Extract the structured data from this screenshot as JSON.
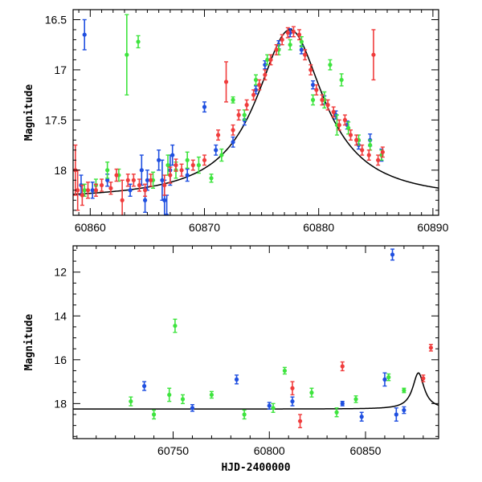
{
  "chart_data": [
    {
      "type": "scatter",
      "panel": "top",
      "xlabel": "",
      "ylabel": "Magnitude",
      "xlim": [
        60858.5,
        60890.5
      ],
      "ylim": [
        18.45,
        16.4
      ],
      "y_inverted": true,
      "x_ticks": [
        60860,
        60870,
        60880,
        60890
      ],
      "y_ticks": [
        16.5,
        17,
        17.5,
        18
      ],
      "x_tick_labels": [
        "60860",
        "60870",
        "60880",
        "60890"
      ],
      "y_tick_labels": [
        "16.5",
        "17",
        "17.5",
        "18"
      ],
      "grid": false,
      "model_curve": {
        "type": "line",
        "color": "#000000",
        "peak_x": 60877.5,
        "peak_y": 16.6,
        "baseline_y": 18.3,
        "width": 3.6
      },
      "series": [
        {
          "color": "#1f4fe0",
          "points": [
            [
              60859.5,
              16.65,
              0.15
            ],
            [
              60859.2,
              18.15,
              0.1
            ],
            [
              60860.2,
              18.2,
              0.08
            ],
            [
              60861.5,
              18.1,
              0.06
            ],
            [
              60863.5,
              18.2,
              0.06
            ],
            [
              60864.5,
              18.0,
              0.15
            ],
            [
              60864.8,
              18.3,
              0.12
            ],
            [
              60865.0,
              18.1,
              0.1
            ],
            [
              60866.0,
              17.9,
              0.1
            ],
            [
              60866.3,
              18.1,
              0.2
            ],
            [
              60866.5,
              18.3,
              0.2
            ],
            [
              60866.7,
              18.45,
              0.2
            ],
            [
              60867.0,
              18.0,
              0.15
            ],
            [
              60867.2,
              17.85,
              0.1
            ],
            [
              60868.5,
              18.05,
              0.06
            ],
            [
              60870.0,
              17.37,
              0.05
            ],
            [
              60871.0,
              17.8,
              0.05
            ],
            [
              60872.5,
              17.72,
              0.05
            ],
            [
              60873.5,
              17.5,
              0.05
            ],
            [
              60874.5,
              17.2,
              0.04
            ],
            [
              60875.3,
              16.95,
              0.04
            ],
            [
              60876.5,
              16.75,
              0.04
            ],
            [
              60877.5,
              16.63,
              0.04
            ],
            [
              60878.5,
              16.8,
              0.04
            ],
            [
              60879.5,
              17.15,
              0.04
            ],
            [
              60880.5,
              17.3,
              0.04
            ],
            [
              60881.5,
              17.45,
              0.04
            ],
            [
              60882.5,
              17.55,
              0.04
            ],
            [
              60883.5,
              17.75,
              0.04
            ],
            [
              60884.5,
              17.7,
              0.06
            ],
            [
              60885.5,
              17.85,
              0.06
            ]
          ]
        },
        {
          "color": "#3ee43e",
          "points": [
            [
              60859.5,
              18.2,
              0.06
            ],
            [
              60860.5,
              18.15,
              0.06
            ],
            [
              60861.5,
              18.0,
              0.08
            ],
            [
              60862.5,
              18.05,
              0.06
            ],
            [
              60863.2,
              16.85,
              0.4
            ],
            [
              60864.2,
              16.72,
              0.06
            ],
            [
              60865.5,
              18.1,
              0.08
            ],
            [
              60866.8,
              17.95,
              0.1
            ],
            [
              60867.5,
              18.0,
              0.08
            ],
            [
              60868.5,
              17.9,
              0.08
            ],
            [
              60869.5,
              17.95,
              0.08
            ],
            [
              60870.6,
              18.08,
              0.04
            ],
            [
              60871.5,
              17.85,
              0.06
            ],
            [
              60872.5,
              17.3,
              0.03
            ],
            [
              60873.5,
              17.45,
              0.05
            ],
            [
              60874.5,
              17.1,
              0.05
            ],
            [
              60875.5,
              16.9,
              0.05
            ],
            [
              60876.5,
              16.8,
              0.05
            ],
            [
              60877.5,
              16.75,
              0.05
            ],
            [
              60878.5,
              16.72,
              0.05
            ],
            [
              60879.5,
              17.3,
              0.05
            ],
            [
              60880.5,
              17.3,
              0.08
            ],
            [
              60881.0,
              16.95,
              0.05
            ],
            [
              60881.6,
              17.55,
              0.1
            ],
            [
              60882.0,
              17.1,
              0.06
            ],
            [
              60882.6,
              17.58,
              0.06
            ],
            [
              60883.5,
              17.7,
              0.05
            ],
            [
              60884.5,
              17.75,
              0.05
            ],
            [
              60885.5,
              17.85,
              0.05
            ]
          ]
        },
        {
          "color": "#f03c3c",
          "points": [
            [
              60858.7,
              18.0,
              0.25
            ],
            [
              60858.9,
              18.2,
              0.2
            ],
            [
              60859.3,
              18.25,
              0.1
            ],
            [
              60859.8,
              18.2,
              0.08
            ],
            [
              60860.5,
              18.2,
              0.06
            ],
            [
              60861.0,
              18.15,
              0.06
            ],
            [
              60861.8,
              18.18,
              0.06
            ],
            [
              60862.3,
              18.05,
              0.06
            ],
            [
              60862.8,
              18.3,
              0.2
            ],
            [
              60863.3,
              18.1,
              0.06
            ],
            [
              60863.8,
              18.1,
              0.06
            ],
            [
              60864.3,
              18.15,
              0.06
            ],
            [
              60864.8,
              18.2,
              0.06
            ],
            [
              60865.3,
              18.1,
              0.06
            ],
            [
              60866.5,
              18.15,
              0.1
            ],
            [
              60867.0,
              18.05,
              0.08
            ],
            [
              60867.5,
              17.95,
              0.06
            ],
            [
              60868.0,
              18.0,
              0.06
            ],
            [
              60869.0,
              17.95,
              0.05
            ],
            [
              60870.0,
              17.9,
              0.05
            ],
            [
              60871.2,
              17.65,
              0.05
            ],
            [
              60871.9,
              17.12,
              0.2
            ],
            [
              60872.5,
              17.6,
              0.05
            ],
            [
              60873.0,
              17.45,
              0.05
            ],
            [
              60873.7,
              17.35,
              0.05
            ],
            [
              60874.3,
              17.25,
              0.05
            ],
            [
              60874.8,
              17.15,
              0.05
            ],
            [
              60875.3,
              17.05,
              0.05
            ],
            [
              60875.8,
              16.9,
              0.05
            ],
            [
              60876.3,
              16.8,
              0.05
            ],
            [
              60876.8,
              16.7,
              0.05
            ],
            [
              60877.3,
              16.63,
              0.05
            ],
            [
              60877.8,
              16.62,
              0.05
            ],
            [
              60878.3,
              16.65,
              0.05
            ],
            [
              60878.8,
              16.85,
              0.05
            ],
            [
              60879.3,
              17.0,
              0.05
            ],
            [
              60879.8,
              17.2,
              0.05
            ],
            [
              60880.3,
              17.3,
              0.05
            ],
            [
              60880.8,
              17.35,
              0.05
            ],
            [
              60881.3,
              17.42,
              0.05
            ],
            [
              60881.8,
              17.55,
              0.05
            ],
            [
              60882.3,
              17.5,
              0.05
            ],
            [
              60882.8,
              17.65,
              0.05
            ],
            [
              60883.3,
              17.7,
              0.05
            ],
            [
              60883.8,
              17.8,
              0.05
            ],
            [
              60884.4,
              17.85,
              0.05
            ],
            [
              60884.8,
              16.85,
              0.25
            ],
            [
              60885.2,
              17.9,
              0.05
            ],
            [
              60885.6,
              17.82,
              0.05
            ]
          ]
        }
      ]
    },
    {
      "type": "scatter",
      "panel": "bottom",
      "xlabel": "HJD-2400000",
      "ylabel": "Magnitude",
      "xlim": [
        60698,
        60888
      ],
      "ylim": [
        19.6,
        10.8
      ],
      "y_inverted": true,
      "x_ticks": [
        60750,
        60800,
        60850
      ],
      "y_ticks": [
        12,
        14,
        16,
        18
      ],
      "x_tick_labels": [
        "60750",
        "60800",
        "60850"
      ],
      "y_tick_labels": [
        "12",
        "14",
        "16",
        "18"
      ],
      "grid": false,
      "model_curve": {
        "type": "line",
        "color": "#000000",
        "peak_x": 60877.5,
        "peak_y": 16.6,
        "baseline_y": 18.25,
        "width": 3.6
      },
      "series": [
        {
          "color": "#1f4fe0",
          "points": [
            [
              60735,
              17.2,
              0.2
            ],
            [
              60760,
              18.2,
              0.15
            ],
            [
              60783,
              16.9,
              0.2
            ],
            [
              60800,
              18.1,
              0.15
            ],
            [
              60812,
              17.9,
              0.2
            ],
            [
              60838,
              18.0,
              0.1
            ],
            [
              60848,
              18.6,
              0.2
            ],
            [
              60860,
              16.9,
              0.3
            ],
            [
              60864,
              11.2,
              0.25
            ],
            [
              60866,
              18.5,
              0.3
            ],
            [
              60870,
              18.3,
              0.15
            ]
          ]
        },
        {
          "color": "#3ee43e",
          "points": [
            [
              60728,
              17.9,
              0.2
            ],
            [
              60740,
              18.5,
              0.2
            ],
            [
              60748,
              17.6,
              0.3
            ],
            [
              60751,
              14.45,
              0.3
            ],
            [
              60755,
              17.8,
              0.2
            ],
            [
              60770,
              17.6,
              0.15
            ],
            [
              60787,
              18.5,
              0.2
            ],
            [
              60802,
              18.2,
              0.2
            ],
            [
              60808,
              16.5,
              0.15
            ],
            [
              60822,
              17.5,
              0.2
            ],
            [
              60835,
              18.4,
              0.2
            ],
            [
              60845,
              17.8,
              0.15
            ],
            [
              60862,
              16.8,
              0.15
            ],
            [
              60870,
              17.4,
              0.1
            ]
          ]
        },
        {
          "color": "#f03c3c",
          "points": [
            [
              60838,
              16.3,
              0.2
            ],
            [
              60880,
              16.85,
              0.15
            ],
            [
              60884,
              15.45,
              0.15
            ],
            [
              60812,
              17.3,
              0.3
            ],
            [
              60816,
              18.8,
              0.3
            ]
          ]
        }
      ]
    }
  ]
}
